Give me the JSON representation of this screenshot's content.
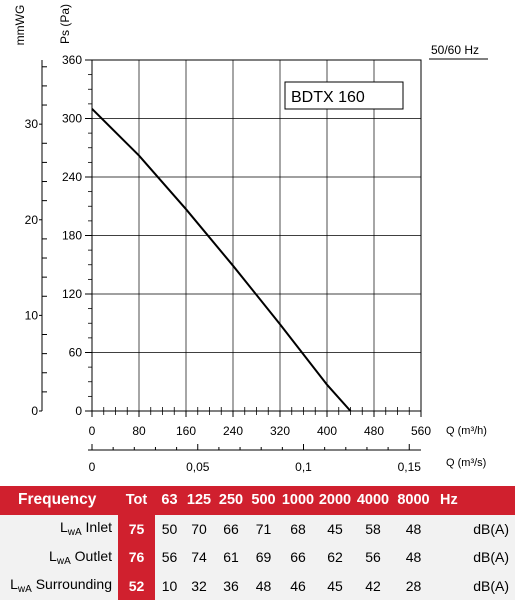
{
  "chart_data": {
    "type": "line",
    "model_label": "BDTX 160",
    "frequency_label": "50/60 Hz",
    "y_axis_left_label": "mmWG",
    "y_axis_label": "Ps (Pa)",
    "x_axis_label": "Q (m³/h)",
    "x2_axis_label": "Q (m³/s)",
    "xlim": [
      0,
      560
    ],
    "ylim": [
      0,
      360
    ],
    "x_ticks": [
      "0",
      "80",
      "160",
      "240",
      "320",
      "400",
      "480",
      "560"
    ],
    "y_ticks": [
      "0",
      "60",
      "120",
      "180",
      "240",
      "300",
      "360"
    ],
    "mmwg_ticks": [
      "0",
      "10",
      "20",
      "30"
    ],
    "x2_ticks": [
      "0",
      "0,05",
      "0,1",
      "0,15"
    ],
    "series": [
      {
        "x": [
          0,
          80,
          160,
          240,
          320,
          400,
          440
        ],
        "y": [
          310,
          262,
          207,
          149,
          89,
          27,
          0
        ]
      }
    ]
  },
  "noise_table": {
    "header": [
      "Frequency",
      "Tot",
      "63",
      "125",
      "250",
      "500",
      "1000",
      "2000",
      "4000",
      "8000",
      "Hz"
    ],
    "rows": [
      {
        "label_main": "L",
        "label_sub": "wA",
        "label_rest": " Inlet",
        "tot": "75",
        "values": [
          "50",
          "70",
          "66",
          "71",
          "68",
          "45",
          "58",
          "48"
        ],
        "unit": "dB(A)"
      },
      {
        "label_main": "L",
        "label_sub": "wA",
        "label_rest": " Outlet",
        "tot": "76",
        "values": [
          "56",
          "74",
          "61",
          "69",
          "66",
          "62",
          "56",
          "48"
        ],
        "unit": "dB(A)"
      },
      {
        "label_main": "L",
        "label_sub": "wA",
        "label_rest": " Surrounding",
        "tot": "52",
        "values": [
          "10",
          "32",
          "36",
          "48",
          "46",
          "45",
          "42",
          "28"
        ],
        "unit": "dB(A)"
      }
    ]
  },
  "colors": {
    "accent": "#d0202e",
    "row_bg": "#f2f2f2",
    "grid": "#000000"
  }
}
